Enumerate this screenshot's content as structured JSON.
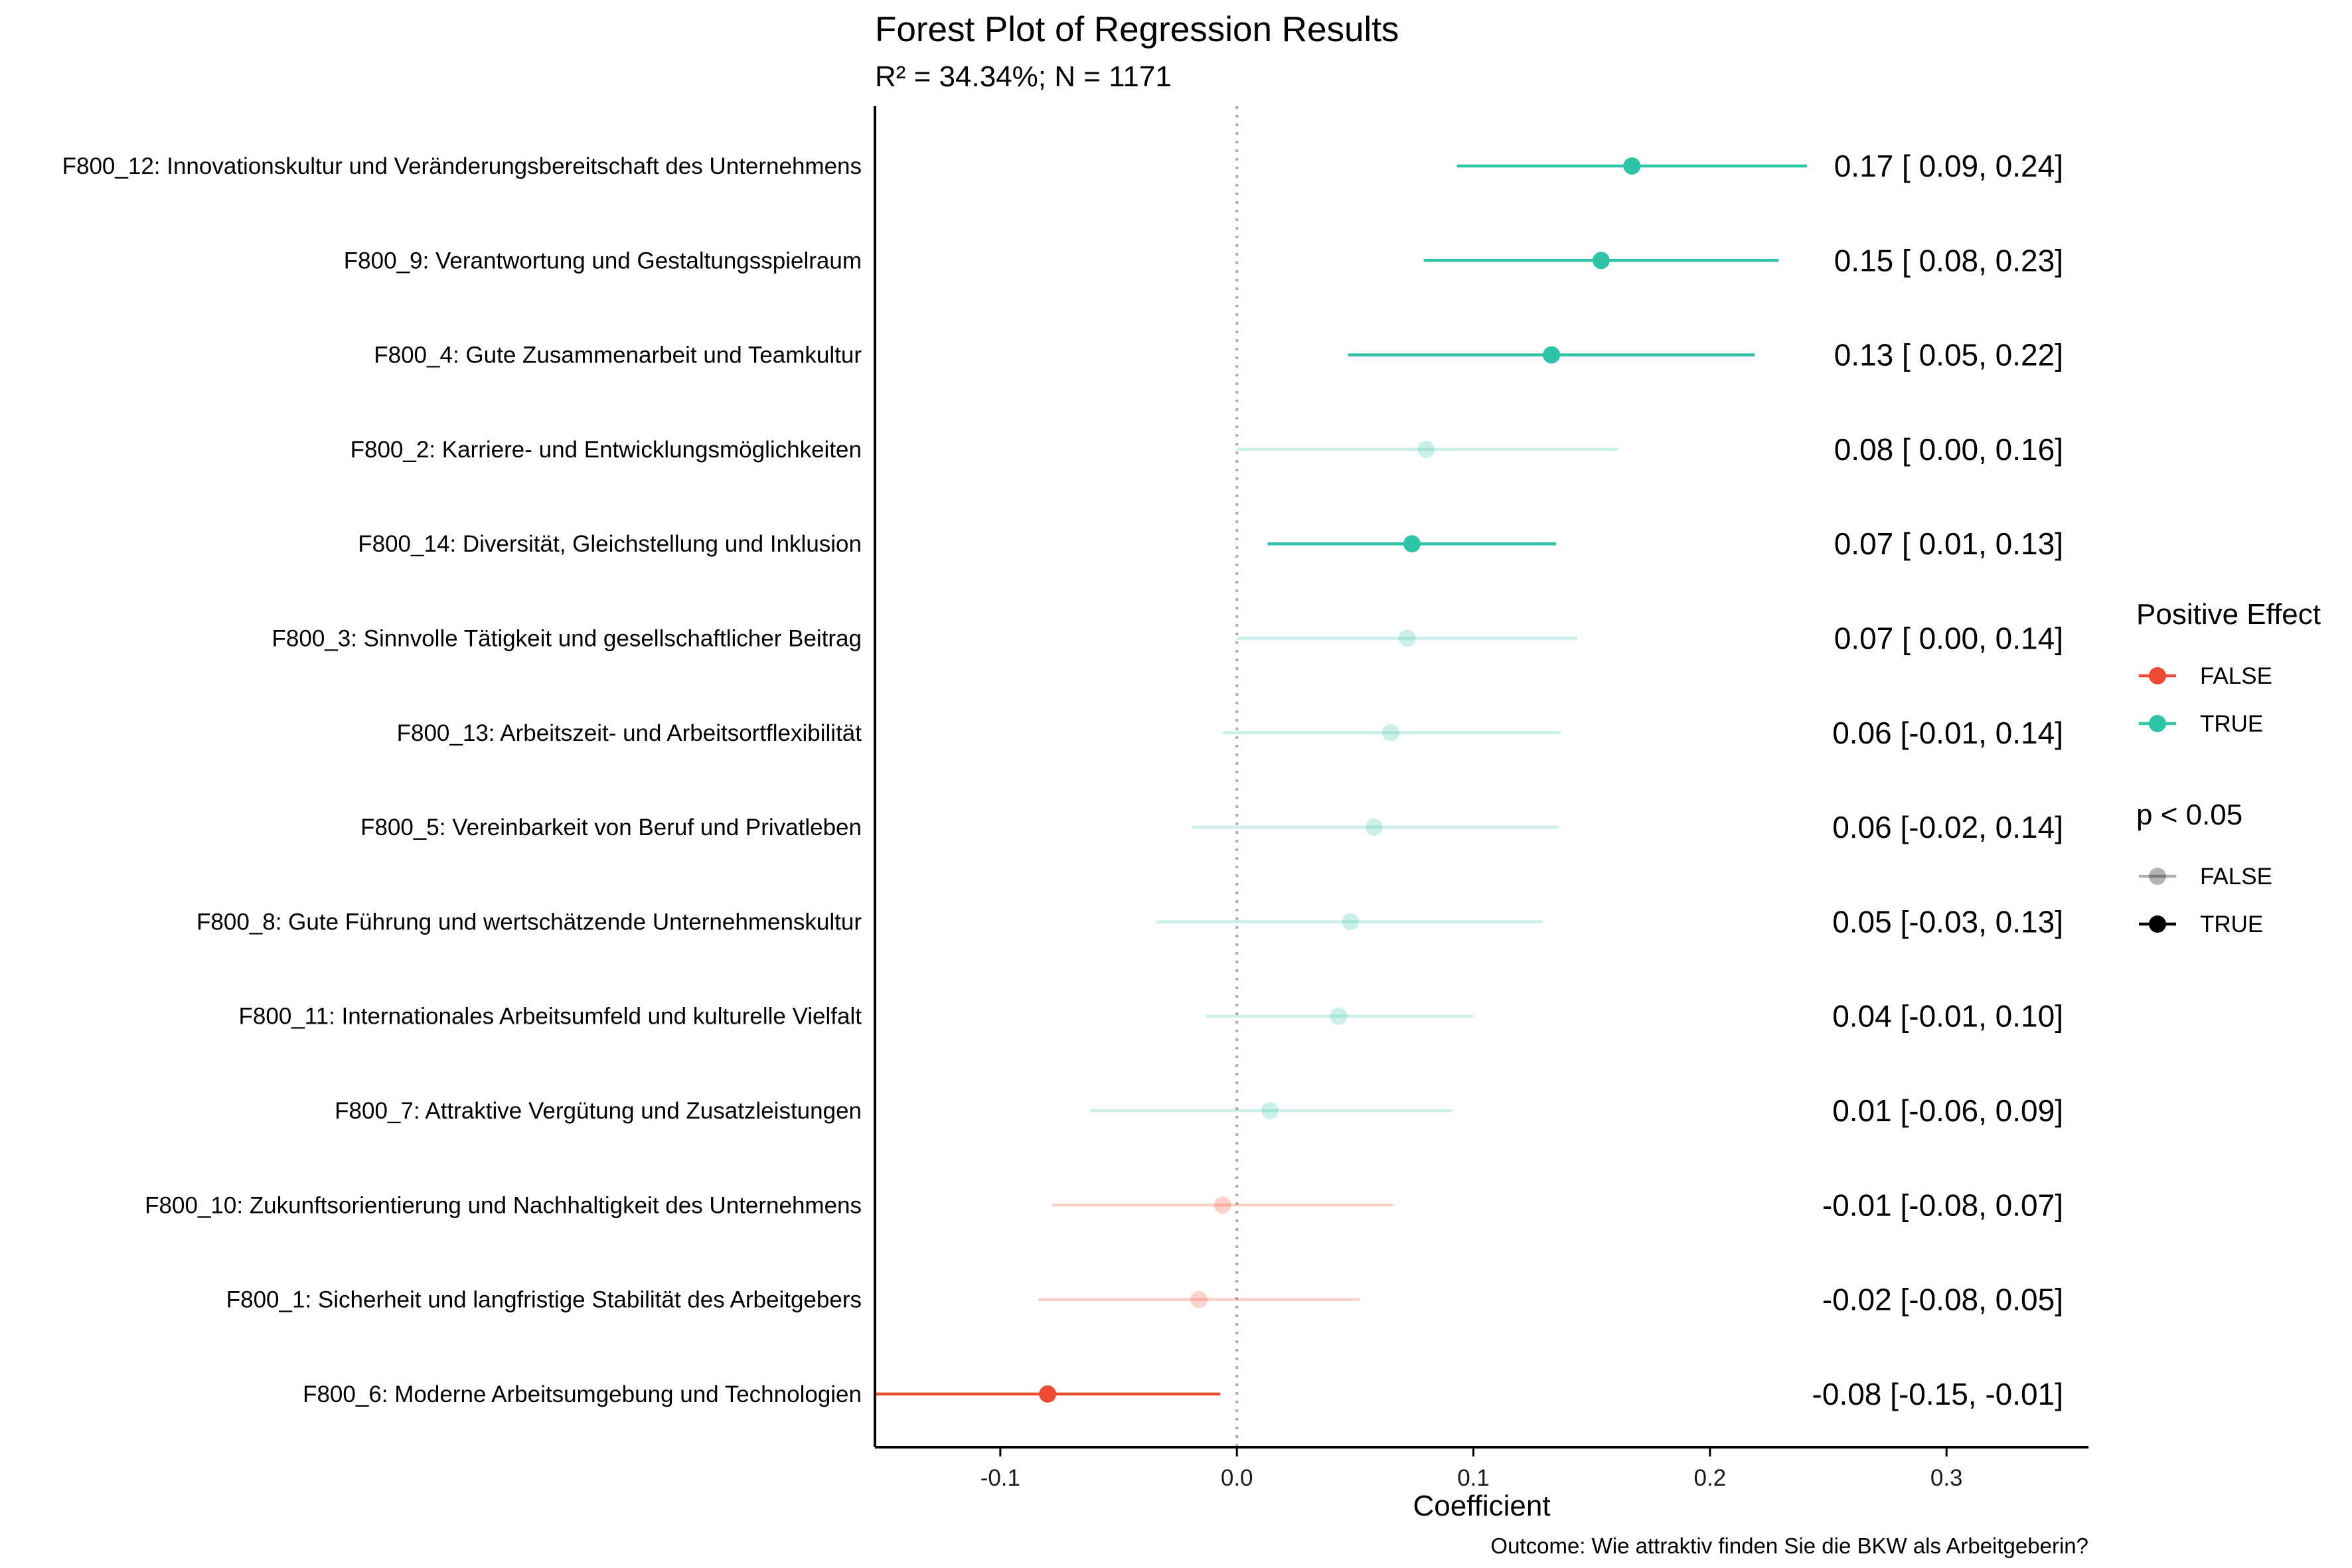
{
  "chart_data": {
    "type": "forest",
    "title": "Forest Plot of Regression Results",
    "subtitle": "R² = 34.34%; N = 1171",
    "xlabel": "Coefficient",
    "caption": "Outcome: Wie attraktiv finden Sie die BKW als Arbeitgeberin?",
    "xlim": [
      -0.153,
      0.36
    ],
    "x_ticks": [
      -0.1,
      0.0,
      0.1,
      0.2,
      0.3
    ],
    "x_tick_labels": [
      "-0.1",
      "0.0",
      "0.1",
      "0.2",
      "0.3"
    ],
    "reference_line": 0,
    "rows": [
      {
        "label": "F800_12: Innovationskultur und Veränderungsbereitschaft des Unternehmens",
        "estimate": 0.167,
        "low": 0.093,
        "high": 0.241,
        "positive": true,
        "significant": true,
        "annotation": "0.17 [ 0.09,  0.24]"
      },
      {
        "label": "F800_9: Verantwortung und Gestaltungsspielraum",
        "estimate": 0.154,
        "low": 0.079,
        "high": 0.229,
        "positive": true,
        "significant": true,
        "annotation": "0.15 [ 0.08,  0.23]"
      },
      {
        "label": "F800_4: Gute Zusammenarbeit und Teamkultur",
        "estimate": 0.133,
        "low": 0.047,
        "high": 0.219,
        "positive": true,
        "significant": true,
        "annotation": "0.13 [ 0.05,  0.22]"
      },
      {
        "label": "F800_2: Karriere- und Entwicklungsmöglichkeiten",
        "estimate": 0.08,
        "low": 0.0,
        "high": 0.161,
        "positive": true,
        "significant": false,
        "annotation": "0.08 [ 0.00,  0.16]"
      },
      {
        "label": "F800_14: Diversität, Gleichstellung und Inklusion",
        "estimate": 0.074,
        "low": 0.013,
        "high": 0.135,
        "positive": true,
        "significant": true,
        "annotation": "0.07 [ 0.01,  0.13]"
      },
      {
        "label": "F800_3: Sinnvolle Tätigkeit und gesellschaftlicher Beitrag",
        "estimate": 0.072,
        "low": 0.0,
        "high": 0.144,
        "positive": true,
        "significant": false,
        "annotation": "0.07 [ 0.00,  0.14]"
      },
      {
        "label": "F800_13: Arbeitszeit- und Arbeitsortflexibilität",
        "estimate": 0.065,
        "low": -0.006,
        "high": 0.137,
        "positive": true,
        "significant": false,
        "annotation": "0.06 [-0.01,  0.14]"
      },
      {
        "label": "F800_5: Vereinbarkeit von Beruf und Privatleben",
        "estimate": 0.058,
        "low": -0.019,
        "high": 0.136,
        "positive": true,
        "significant": false,
        "annotation": "0.06 [-0.02,  0.14]"
      },
      {
        "label": "F800_8: Gute Führung und wertschätzende Unternehmenskultur",
        "estimate": 0.048,
        "low": -0.034,
        "high": 0.129,
        "positive": true,
        "significant": false,
        "annotation": "0.05 [-0.03,  0.13]"
      },
      {
        "label": "F800_11: Internationales Arbeitsumfeld und kulturelle Vielfalt",
        "estimate": 0.043,
        "low": -0.013,
        "high": 0.1,
        "positive": true,
        "significant": false,
        "annotation": "0.04 [-0.01,  0.10]"
      },
      {
        "label": "F800_7: Attraktive Vergütung und Zusatzleistungen",
        "estimate": 0.014,
        "low": -0.062,
        "high": 0.091,
        "positive": true,
        "significant": false,
        "annotation": "0.01 [-0.06,  0.09]"
      },
      {
        "label": "F800_10: Zukunftsorientierung und Nachhaltigkeit des Unternehmens",
        "estimate": -0.006,
        "low": -0.078,
        "high": 0.066,
        "positive": false,
        "significant": false,
        "annotation": "-0.01 [-0.08,  0.07]"
      },
      {
        "label": "F800_1: Sicherheit und langfristige Stabilität des Arbeitgebers",
        "estimate": -0.016,
        "low": -0.084,
        "high": 0.052,
        "positive": false,
        "significant": false,
        "annotation": "-0.02 [-0.08,  0.05]"
      },
      {
        "label": "F800_6: Moderne Arbeitsumgebung und Technologien",
        "estimate": -0.08,
        "low": -0.153,
        "high": -0.007,
        "positive": false,
        "significant": true,
        "annotation": "-0.08 [-0.15, -0.01]"
      }
    ],
    "legend": {
      "position": "right",
      "groups": [
        {
          "title": "Positive Effect",
          "entries": [
            {
              "label": "FALSE",
              "color": "#ee4a32"
            },
            {
              "label": "TRUE",
              "color": "#2ec4a8"
            }
          ]
        },
        {
          "title": "p < 0.05",
          "entries": [
            {
              "label": "FALSE",
              "color": "#000000",
              "faded": true
            },
            {
              "label": "TRUE",
              "color": "#000000",
              "faded": false
            }
          ]
        }
      ]
    },
    "colors": {
      "positive": "#2ec4a8",
      "negative": "#ee4a32",
      "ref_line": "#aaaaaa",
      "axis": "#000000"
    }
  }
}
